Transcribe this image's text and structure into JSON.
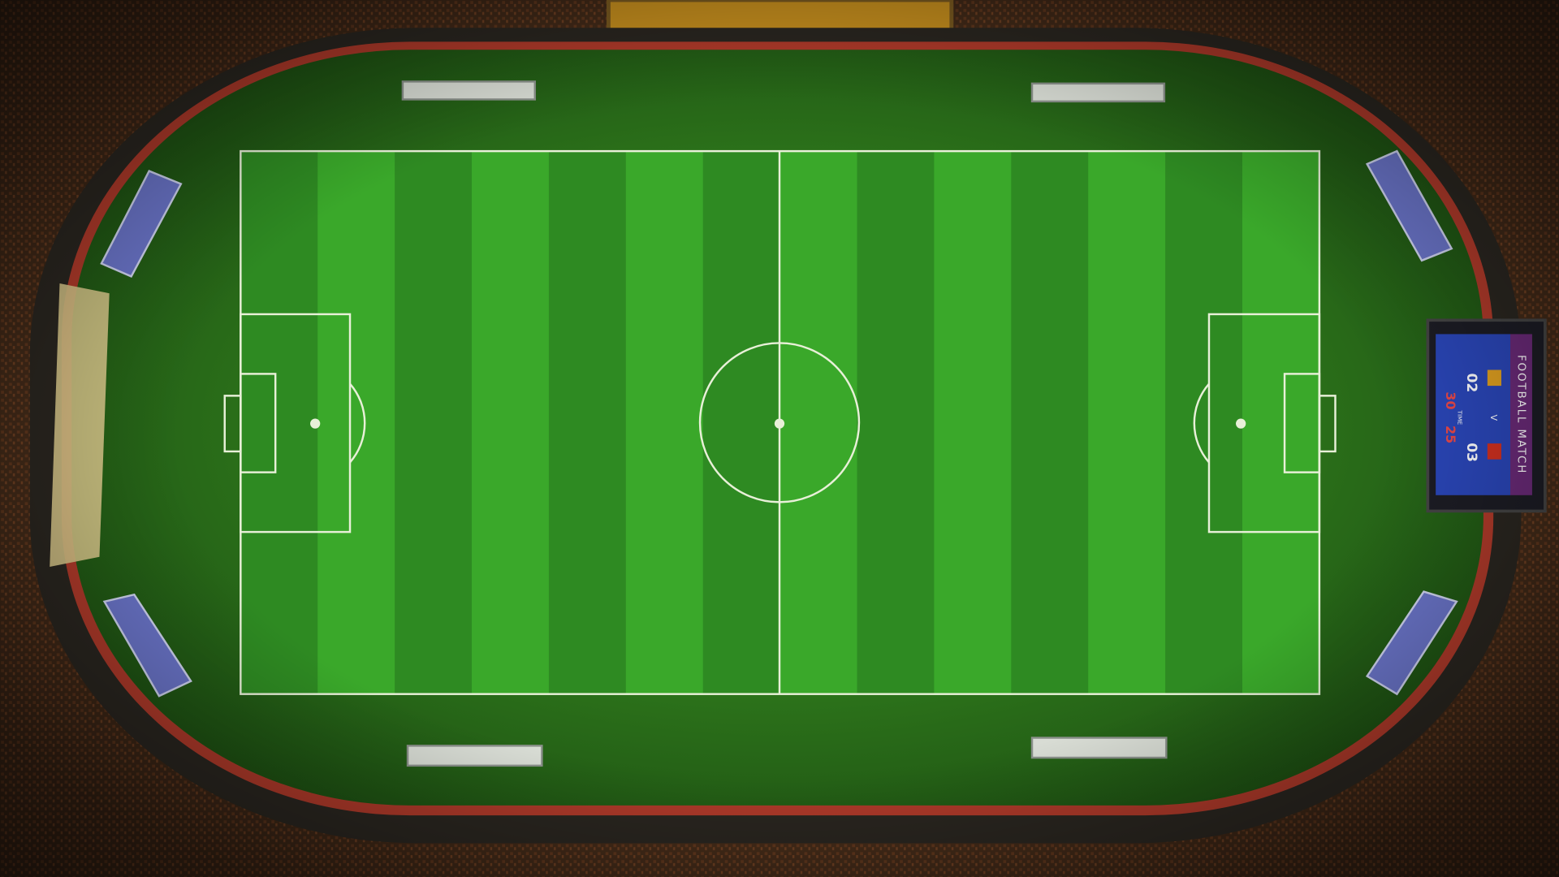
{
  "scoreboard": {
    "title": "FOOTBALL MATCH",
    "home_score": "02",
    "versus": "V",
    "away_score": "03",
    "time_label": "TIME",
    "time_minutes": "30",
    "time_seconds": "25"
  }
}
